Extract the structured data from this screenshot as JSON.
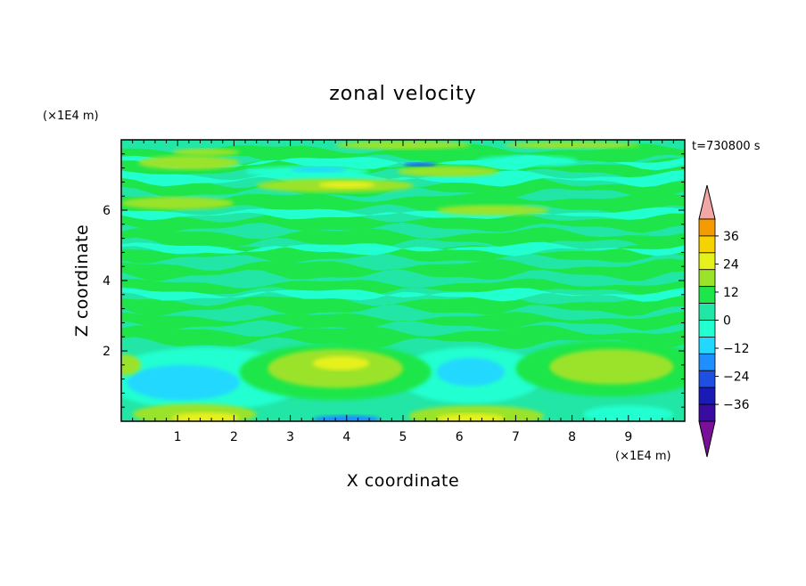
{
  "chart_data": {
    "type": "heatmap",
    "title": "zonal velocity",
    "xlabel": "X coordinate",
    "ylabel": "Z coordinate",
    "x_unit": "(×1E4 m)",
    "y_unit": "(×1E4 m)",
    "time_label": "t=730800 s",
    "xlim": [
      0,
      10
    ],
    "ylim": [
      0,
      8
    ],
    "x_ticks": [
      1,
      2,
      3,
      4,
      5,
      6,
      7,
      8,
      9
    ],
    "y_ticks": [
      2,
      4,
      6
    ],
    "colorbar": {
      "levels": [
        -36,
        -30,
        -24,
        -18,
        -12,
        -6,
        0,
        6,
        12,
        18,
        24,
        30,
        36
      ],
      "tick_labels": [
        "36",
        "24",
        "12",
        "0",
        "−12",
        "−24",
        "−36"
      ],
      "tick_values": [
        36,
        24,
        12,
        0,
        -12,
        -24,
        -36
      ],
      "colors": [
        "#7a0f9a",
        "#3a0ba0",
        "#1a1ab4",
        "#1f4fe0",
        "#1f8fff",
        "#22d8ff",
        "#22ffd0",
        "#22e6a6",
        "#1ee64a",
        "#9be32a",
        "#e6f01c",
        "#f5d200",
        "#f59a00",
        "#f56a10",
        "#f03a20",
        "#e8261c",
        "#f2a6a6"
      ],
      "extend": "both"
    },
    "features": [
      {
        "description_id": "lower-left-cyan",
        "u_sign": "negative"
      },
      {
        "description_id": "lower-right-yellow",
        "u_sign": "positive"
      }
    ]
  }
}
